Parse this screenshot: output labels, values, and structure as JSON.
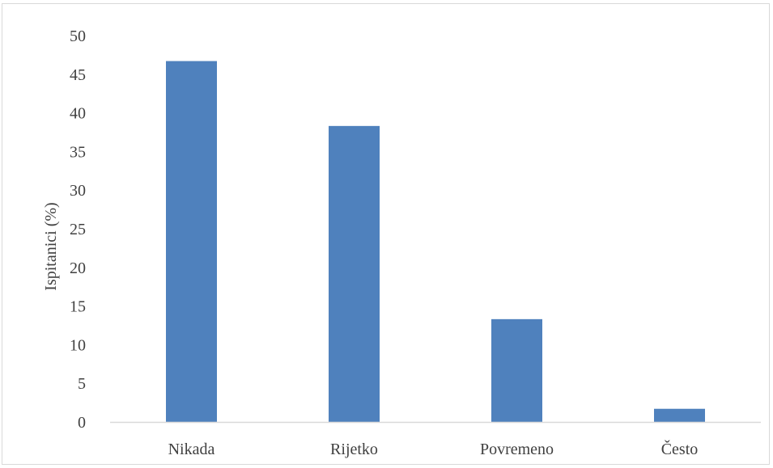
{
  "chart_data": {
    "type": "bar",
    "title": "",
    "xlabel": "",
    "ylabel": "Ispitanici (%)",
    "categories": [
      "Nikada",
      "Rijetko",
      "Povremeno",
      "Često"
    ],
    "values": [
      46.7,
      38.3,
      13.3,
      1.7
    ],
    "ylim": [
      0,
      50
    ],
    "yticks": [
      0,
      5,
      10,
      15,
      20,
      25,
      30,
      35,
      40,
      45,
      50
    ],
    "grid": false,
    "legend": "none",
    "bar_color": "#4f81bd",
    "axis_color": "#d9d9d9",
    "text_color": "#404040"
  }
}
